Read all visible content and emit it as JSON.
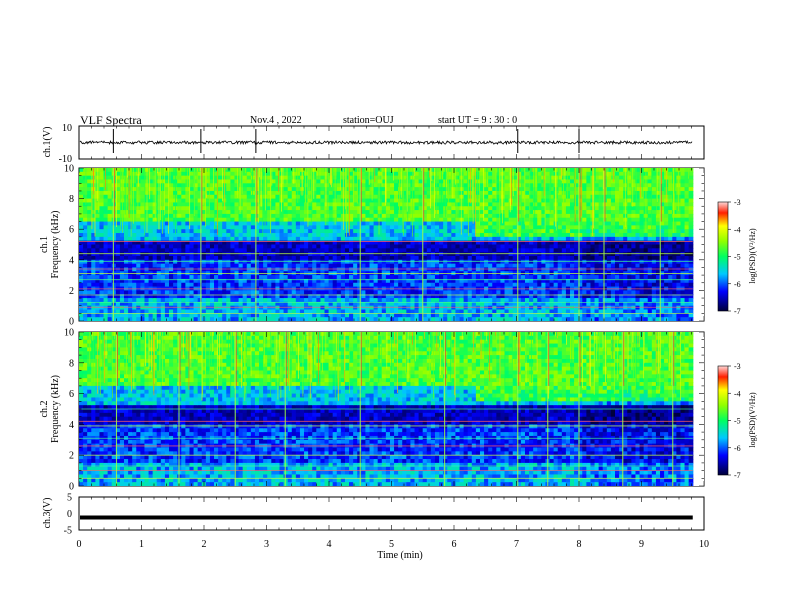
{
  "header": {
    "title": "VLF Spectra",
    "date": "Nov.4 , 2022",
    "station": "station=OUJ",
    "start": "start UT = 9 : 30 : 0"
  },
  "colors": {
    "spec_low": "#000060",
    "spec_mid": "#00e0a0",
    "spec_high": "#ff2020",
    "trace": "#000000"
  },
  "chart_data": [
    {
      "type": "line",
      "name": "ch1-waveform",
      "ylabel": "ch.1(V)",
      "ylim": [
        -10,
        10
      ],
      "yticks": [
        "10",
        "-10"
      ],
      "xlim": [
        0,
        10
      ],
      "baseline": 0,
      "spikes_min": [
        0.55,
        1.95,
        2.83,
        7.02,
        8.0
      ]
    },
    {
      "type": "heatmap",
      "name": "ch1-spectrogram",
      "ylabel_channel": "ch.1",
      "ylabel": "Frequency (kHz)",
      "xlim": [
        0,
        10
      ],
      "ylim": [
        0,
        10
      ],
      "yticks": [
        "0",
        "2",
        "4",
        "6",
        "8",
        "10"
      ],
      "data_xmax": 9.82,
      "colorbar": {
        "label": "log(PSD)(V²/Hz)",
        "range": [
          -7,
          -3
        ],
        "ticks": [
          "-3",
          "-4",
          "-5",
          "-6",
          "-7"
        ]
      },
      "bands_khz": [
        0.5,
        0.9,
        1.2,
        1.7,
        2.1,
        2.7,
        3.1,
        3.4,
        3.9,
        4.4,
        5.2
      ],
      "strong_bursts_min": [
        0.55,
        1.95,
        2.83,
        4.5,
        5.5,
        7.02,
        8.0,
        8.4,
        9.3
      ]
    },
    {
      "type": "heatmap",
      "name": "ch2-spectrogram",
      "ylabel_channel": "ch.2",
      "ylabel": "Frequency (kHz)",
      "xlim": [
        0,
        10
      ],
      "ylim": [
        0,
        10
      ],
      "yticks": [
        "0",
        "2",
        "4",
        "6",
        "8",
        "10"
      ],
      "data_xmax": 9.82,
      "colorbar": {
        "label": "log(PSD)(V²/Hz)",
        "range": [
          -7,
          -3
        ],
        "ticks": [
          "-3",
          "-4",
          "-5",
          "-6",
          "-7"
        ]
      },
      "bands_khz": [
        0.5,
        1.0,
        1.3,
        2.0,
        2.6,
        3.1,
        3.9,
        4.2,
        5.0
      ],
      "strong_bursts_min": [
        0.6,
        1.6,
        2.5,
        3.3,
        4.5,
        5.85,
        7.02,
        7.5,
        8.0,
        8.7,
        9.5
      ]
    },
    {
      "type": "line",
      "name": "ch3-waveform",
      "ylabel": "ch.3(V)",
      "ylim": [
        -5,
        5
      ],
      "yticks": [
        "5",
        "0",
        "-5"
      ],
      "xlim": [
        0,
        10
      ],
      "baseline": -1.2
    }
  ],
  "xaxis": {
    "label": "Time (min)",
    "ticks": [
      "0",
      "1",
      "2",
      "3",
      "4",
      "5",
      "6",
      "7",
      "8",
      "9",
      "10"
    ]
  }
}
